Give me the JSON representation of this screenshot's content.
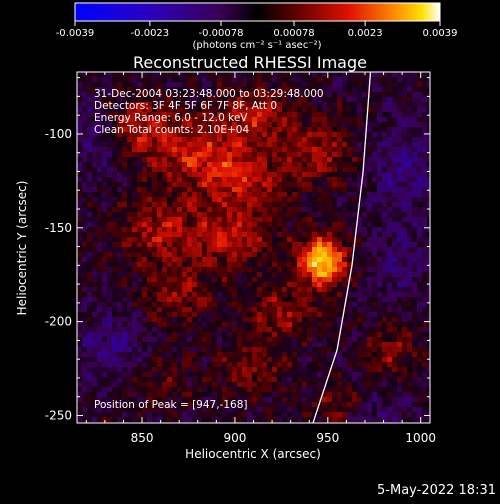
{
  "chart_data": {
    "type": "heatmap",
    "title": "Reconstructed RHESSI Image",
    "xlabel": "Heliocentric X (arcsec)",
    "ylabel": "Heliocentric Y (arcsec)",
    "xlim": [
      815,
      1005
    ],
    "ylim": [
      -254,
      -67
    ],
    "x_ticks": [
      850,
      900,
      950,
      1000
    ],
    "y_ticks": [
      -100,
      -150,
      -200,
      -250
    ],
    "colorbar": {
      "colormap": "RHESSI blue-black-red-yellow-white",
      "range": [
        -0.0039,
        0.0039
      ],
      "ticks": [
        "-0.0039",
        "-0.0023",
        "-0.00078",
        "0.00078",
        "0.0023",
        "0.0039"
      ],
      "units": "(photons cm⁻² s⁻¹ asec⁻²)"
    },
    "annotations": {
      "time_range": "31-Dec-2004 03:23:48.000 to 03:29:48.000",
      "detectors": "Detectors: 3F 4F 5F 6F 7F 8F, Att 0",
      "energy": "Energy Range: 6.0 - 12.0 keV",
      "clean": "Clean     Total counts: 2.10E+04",
      "peak": "Position of Peak = [947,-168]"
    },
    "peak": {
      "x": 947,
      "y": -168
    },
    "limb_curve": [
      [
        942,
        -254
      ],
      [
        955,
        -215
      ],
      [
        963,
        -170
      ],
      [
        969,
        -120
      ],
      [
        973,
        -67
      ]
    ],
    "regions": [
      {
        "x": 947,
        "y": -168,
        "amp": 0.0039,
        "sx": 9,
        "sy": 9
      },
      {
        "x": 848,
        "y": -95,
        "amp": 0.0016,
        "sx": 14,
        "sy": 10
      },
      {
        "x": 878,
        "y": -110,
        "amp": 0.0018,
        "sx": 18,
        "sy": 12
      },
      {
        "x": 910,
        "y": -90,
        "amp": 0.0017,
        "sx": 14,
        "sy": 10
      },
      {
        "x": 905,
        "y": -125,
        "amp": 0.0016,
        "sx": 16,
        "sy": 12
      },
      {
        "x": 945,
        "y": -110,
        "amp": 0.0015,
        "sx": 14,
        "sy": 12
      },
      {
        "x": 860,
        "y": -150,
        "amp": 0.0016,
        "sx": 16,
        "sy": 12
      },
      {
        "x": 900,
        "y": -155,
        "amp": 0.0015,
        "sx": 16,
        "sy": 12
      },
      {
        "x": 868,
        "y": -185,
        "amp": 0.0013,
        "sx": 14,
        "sy": 12
      },
      {
        "x": 925,
        "y": -195,
        "amp": 0.0013,
        "sx": 14,
        "sy": 10
      },
      {
        "x": 855,
        "y": -230,
        "amp": 0.0009,
        "sx": 14,
        "sy": 10
      },
      {
        "x": 910,
        "y": -225,
        "amp": 0.0012,
        "sx": 14,
        "sy": 10
      },
      {
        "x": 985,
        "y": -215,
        "amp": 0.0012,
        "sx": 10,
        "sy": 10
      },
      {
        "x": 955,
        "y": -245,
        "amp": 0.0011,
        "sx": 10,
        "sy": 8
      },
      {
        "x": 825,
        "y": -100,
        "amp": -0.0009,
        "sx": 10,
        "sy": 14
      },
      {
        "x": 835,
        "y": -215,
        "amp": -0.0011,
        "sx": 14,
        "sy": 14
      },
      {
        "x": 990,
        "y": -120,
        "amp": -0.001,
        "sx": 14,
        "sy": 18
      },
      {
        "x": 990,
        "y": -170,
        "amp": -0.0008,
        "sx": 12,
        "sy": 14
      },
      {
        "x": 975,
        "y": -250,
        "amp": -0.0007,
        "sx": 14,
        "sy": 8
      }
    ]
  },
  "footer": {
    "date": "5-May-2022 18:31"
  }
}
